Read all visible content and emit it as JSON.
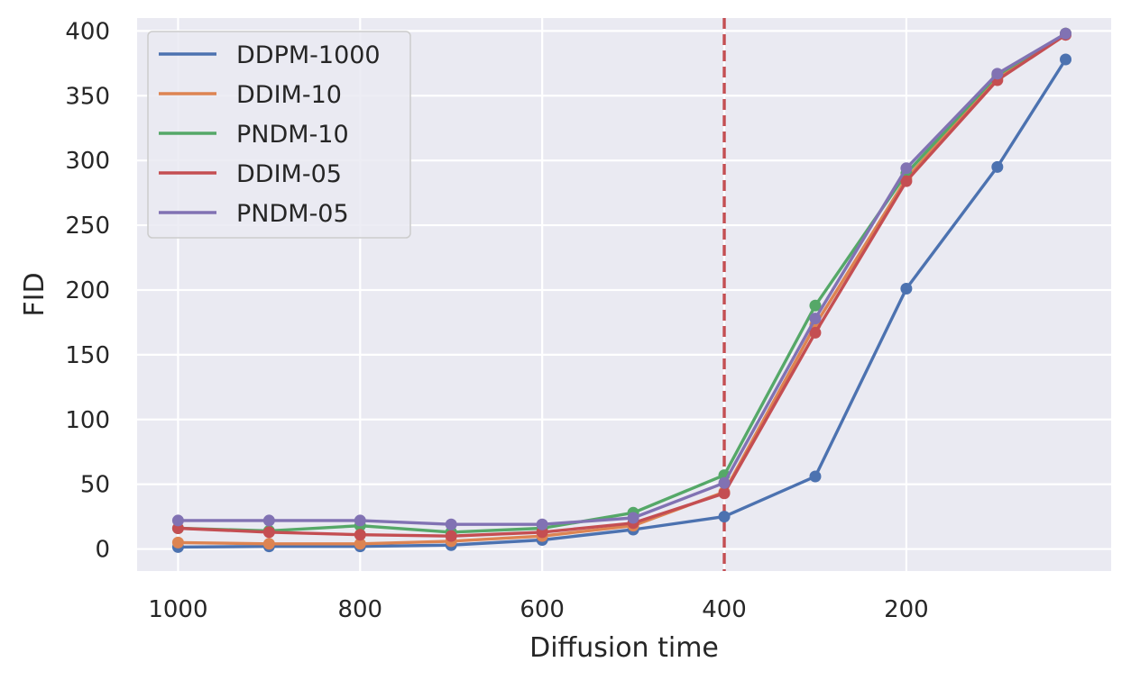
{
  "chart_data": {
    "type": "line",
    "title": "",
    "xlabel": "Diffusion time",
    "ylabel": "FID",
    "x": [
      1000,
      900,
      800,
      700,
      600,
      500,
      400,
      300,
      200,
      100,
      25
    ],
    "xlim": [
      1045,
      -25
    ],
    "xticks": [
      1000,
      800,
      600,
      400,
      200
    ],
    "ylim": [
      -17,
      410
    ],
    "yticks": [
      0,
      50,
      100,
      150,
      200,
      250,
      300,
      350,
      400
    ],
    "grid": true,
    "legend_position": "top-left",
    "vline": {
      "x": 400,
      "color": "#c44e52",
      "style": "dashed"
    },
    "series": [
      {
        "name": "DDPM-1000",
        "color": "#4c72b0",
        "values": [
          1.5,
          2,
          2,
          3,
          7,
          15,
          25,
          56,
          201,
          295,
          378
        ]
      },
      {
        "name": "DDIM-10",
        "color": "#dd8452",
        "values": [
          5,
          4,
          4,
          6,
          10,
          18,
          44,
          173,
          286,
          364,
          398
        ]
      },
      {
        "name": "PNDM-10",
        "color": "#55a868",
        "values": [
          16,
          14,
          18,
          13,
          16,
          28,
          57,
          188,
          290,
          366,
          398
        ]
      },
      {
        "name": "DDIM-05",
        "color": "#c44e52",
        "values": [
          16,
          13,
          11,
          10,
          13,
          20,
          43,
          167,
          284,
          362,
          397
        ]
      },
      {
        "name": "PNDM-05",
        "color": "#8172b3",
        "values": [
          22,
          22,
          22,
          19,
          19,
          24,
          51,
          178,
          294,
          367,
          398
        ]
      }
    ]
  }
}
